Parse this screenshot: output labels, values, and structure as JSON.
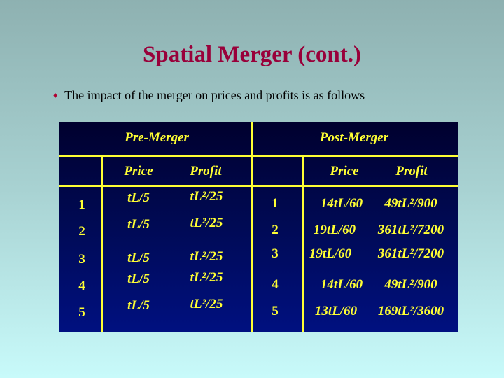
{
  "title": "Spatial Merger (cont.)",
  "bullet": {
    "icon": "diamond-bullet-icon",
    "text": "The impact of the merger on prices and profits is as follows"
  },
  "table": {
    "group_headers": [
      "Pre-Merger",
      "Post-Merger"
    ],
    "pre_columns": [
      "Price",
      "Profit"
    ],
    "post_columns": [
      "Price",
      "Profit"
    ],
    "pre_rows": [
      {
        "firm": "1",
        "price": "tL/5",
        "profit": "tL²/25"
      },
      {
        "firm": "2",
        "price": "tL/5",
        "profit": "tL²/25"
      },
      {
        "firm": "3",
        "price": "tL/5",
        "profit": "tL²/25"
      },
      {
        "firm": "4",
        "price": "tL/5",
        "profit": "tL²/25"
      },
      {
        "firm": "5",
        "price": "tL/5",
        "profit": "tL²/25"
      }
    ],
    "post_rows": [
      {
        "firm": "1",
        "price": "14tL/60",
        "profit": "49tL²/900"
      },
      {
        "firm": "2",
        "price": "19tL/60",
        "profit": "361tL²/7200"
      },
      {
        "firm": "3",
        "price": "19tL/60",
        "profit": "361tL²/7200"
      },
      {
        "firm": "4",
        "price": "14tL/60",
        "profit": "49tL²/900"
      },
      {
        "firm": "5",
        "price": "13tL/60",
        "profit": "169tL²/3600"
      }
    ]
  },
  "colors": {
    "title": "#99003a",
    "table_text": "#ffff33",
    "table_bg": "#000a55"
  }
}
